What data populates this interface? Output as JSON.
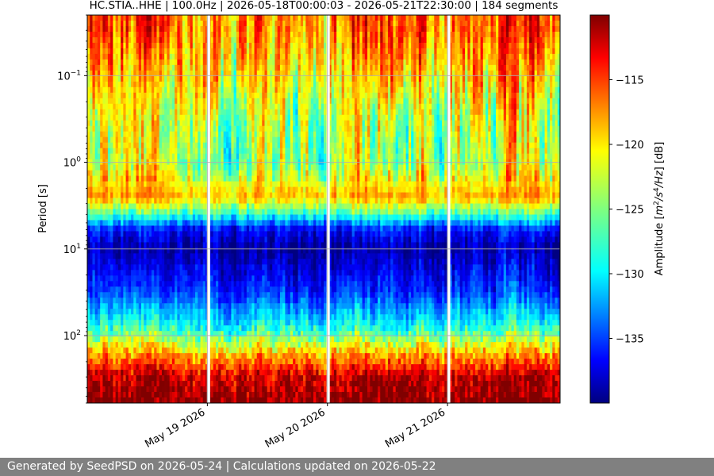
{
  "chart_data": {
    "type": "heatmap",
    "title": "HC.STIA..HHE | 100.0Hz | 2026-05-18T00:00:03 - 2026-05-21T22:30:00 | 184 segments",
    "ylabel": "Period [s]",
    "y_scale": "log",
    "y_axis_inverted": true,
    "ylim_period_s": [
      0.02,
      600
    ],
    "y_ticks": [
      {
        "value": 0.1,
        "base": "10",
        "exp": "−1"
      },
      {
        "value": 1,
        "base": "10",
        "exp": "0"
      },
      {
        "value": 10,
        "base": "10",
        "exp": "1"
      },
      {
        "value": 100,
        "base": "10",
        "exp": "2"
      }
    ],
    "x_start": "2026-05-18T00:00:03",
    "x_end": "2026-05-21T22:30:00",
    "x_ticks": [
      {
        "date": "2026-05-19",
        "label": "May 19 2026"
      },
      {
        "date": "2026-05-20",
        "label": "May 20 2026"
      },
      {
        "date": "2026-05-21",
        "label": "May 21 2026"
      }
    ],
    "data_gaps": [
      {
        "start": "2026-05-18T23:55:00",
        "end": "2026-05-19T00:05:00"
      },
      {
        "start": "2026-05-19T23:50:00",
        "end": "2026-05-20T00:05:00"
      },
      {
        "start": "2026-05-20T23:55:00",
        "end": "2026-05-21T00:05:00"
      }
    ],
    "colorbar": {
      "label_parts": [
        "Amplitude [",
        "m",
        "2",
        "/s",
        "4",
        "/Hz",
        "] [dB]"
      ],
      "colormap": "jet",
      "range_db": [
        -140,
        -110
      ],
      "ticks": [
        {
          "value": -135,
          "label": "−135"
        },
        {
          "value": -130,
          "label": "−130"
        },
        {
          "value": -125,
          "label": "−125"
        },
        {
          "value": -120,
          "label": "−120"
        },
        {
          "value": -115,
          "label": "−115"
        }
      ]
    },
    "grid": true,
    "typical_profile": [
      {
        "period_s": 0.03,
        "db": -117
      },
      {
        "period_s": 0.1,
        "db": -120
      },
      {
        "period_s": 0.3,
        "db": -123
      },
      {
        "period_s": 1,
        "db": -124
      },
      {
        "period_s": 2.5,
        "db": -119
      },
      {
        "period_s": 4,
        "db": -127
      },
      {
        "period_s": 6,
        "db": -136
      },
      {
        "period_s": 10,
        "db": -139
      },
      {
        "period_s": 30,
        "db": -135
      },
      {
        "period_s": 80,
        "db": -128
      },
      {
        "period_s": 150,
        "db": -120
      },
      {
        "period_s": 300,
        "db": -112
      },
      {
        "period_s": 600,
        "db": -110
      }
    ]
  },
  "footer": {
    "text": "Generated by SeedPSD on 2026-05-24 | Calculations updated on 2026-05-22"
  }
}
